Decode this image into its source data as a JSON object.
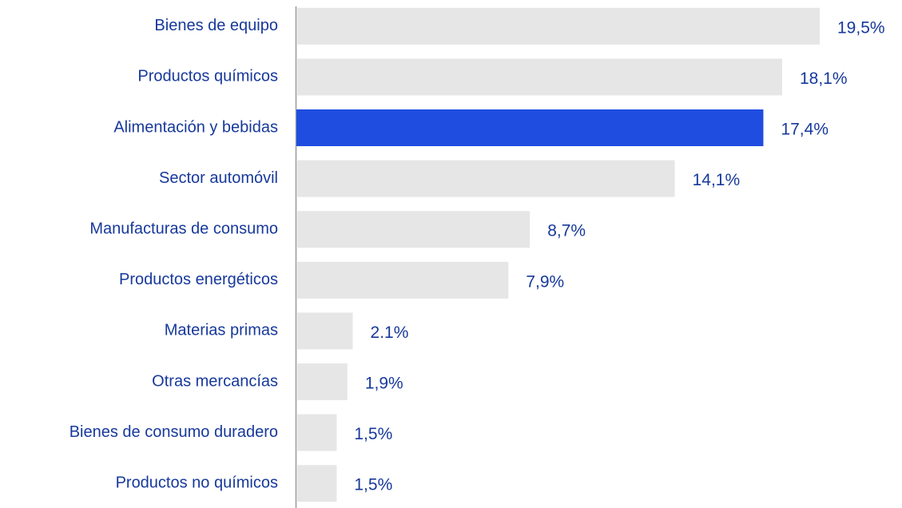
{
  "chart_data": {
    "type": "hbar",
    "categories": [
      "Bienes de equipo",
      "Productos químicos",
      "Alimentación y bebidas",
      "Sector automóvil",
      "Manufacturas de consumo",
      "Productos energéticos",
      "Materias primas",
      "Otras mercancías",
      "Bienes de consumo duradero",
      "Productos no químicos"
    ],
    "values": [
      19.5,
      18.1,
      17.4,
      14.1,
      8.7,
      7.9,
      2.1,
      1.9,
      1.5,
      1.5
    ],
    "value_labels": [
      "19,5%",
      "18,1%",
      "17,4%",
      "14,1%",
      "8,7%",
      "7,9%",
      "2.1%",
      "1,9%",
      "1,5%",
      "1,5%"
    ],
    "colors": [
      "#e6e6e6",
      "#e6e6e6",
      "#1f4de0",
      "#e6e6e6",
      "#e6e6e6",
      "#e6e6e6",
      "#e6e6e6",
      "#e6e6e6",
      "#e6e6e6",
      "#e6e6e6"
    ]
  }
}
